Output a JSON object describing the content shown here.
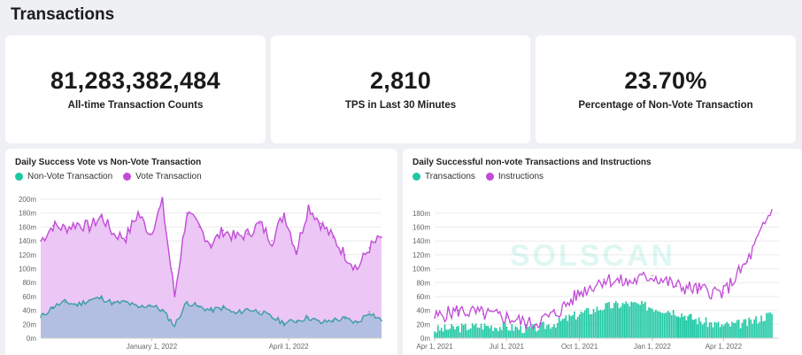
{
  "page": {
    "title": "Transactions"
  },
  "stats": [
    {
      "value": "81,283,382,484",
      "label": "All-time Transaction Counts"
    },
    {
      "value": "2,810",
      "label": "TPS in Last 30 Minutes"
    },
    {
      "value": "23.70%",
      "label": "Percentage of Non-Vote Transaction"
    }
  ],
  "watermark": "SOLSCAN",
  "colors": {
    "teal": "#1fc8a4",
    "purple": "#c14bd8",
    "purple_fill": "#ecc6f5",
    "teal_fill": "#b3bfe2",
    "teal_line": "#3a9da5"
  },
  "chart_data": [
    {
      "type": "area",
      "title": "Daily Success Vote vs Non-Vote Transaction",
      "legend": [
        "Non-Vote Transaction",
        "Vote Transaction"
      ],
      "x_ticks": [
        "January 1, 2022",
        "April 1, 2022"
      ],
      "y_ticks": [
        "0m",
        "20m",
        "40m",
        "60m",
        "80m",
        "100m",
        "120m",
        "140m",
        "160m",
        "180m",
        "200m"
      ],
      "ylim": [
        0,
        200
      ],
      "x_range": [
        "2021-10-20",
        "2022-06-01"
      ],
      "series": [
        {
          "name": "Non-Vote Transaction",
          "x": [
            "2021-10-20",
            "2021-10-28",
            "2021-11-05",
            "2021-11-13",
            "2021-11-21",
            "2021-11-29",
            "2021-12-07",
            "2021-12-15",
            "2021-12-23",
            "2021-12-31",
            "2022-01-08",
            "2022-01-16",
            "2022-01-24",
            "2022-02-01",
            "2022-02-09",
            "2022-02-17",
            "2022-02-25",
            "2022-03-05",
            "2022-03-13",
            "2022-03-21",
            "2022-03-29",
            "2022-04-06",
            "2022-04-14",
            "2022-04-22",
            "2022-04-30",
            "2022-05-08",
            "2022-05-16",
            "2022-05-24",
            "2022-06-01"
          ],
          "values": [
            30,
            45,
            52,
            48,
            55,
            58,
            50,
            52,
            44,
            48,
            40,
            18,
            52,
            45,
            40,
            44,
            35,
            42,
            38,
            30,
            22,
            25,
            30,
            22,
            26,
            28,
            22,
            38,
            25
          ]
        },
        {
          "name": "Vote Transaction",
          "x": [
            "2021-10-20",
            "2021-10-28",
            "2021-11-05",
            "2021-11-13",
            "2021-11-21",
            "2021-11-29",
            "2021-12-07",
            "2021-12-15",
            "2021-12-23",
            "2021-12-31",
            "2022-01-08",
            "2022-01-16",
            "2022-01-24",
            "2022-02-01",
            "2022-02-09",
            "2022-02-17",
            "2022-02-25",
            "2022-03-05",
            "2022-03-13",
            "2022-03-21",
            "2022-03-29",
            "2022-04-06",
            "2022-04-14",
            "2022-04-22",
            "2022-04-30",
            "2022-05-08",
            "2022-05-16",
            "2022-05-24",
            "2022-06-01"
          ],
          "values": [
            140,
            162,
            158,
            165,
            160,
            175,
            150,
            145,
            180,
            150,
            195,
            60,
            180,
            160,
            135,
            155,
            145,
            150,
            165,
            140,
            180,
            125,
            190,
            165,
            145,
            120,
            100,
            130,
            145
          ]
        }
      ]
    },
    {
      "type": "bar",
      "title": "Daily Successful non-vote Transactions and Instructions",
      "legend": [
        "Transactions",
        "Instructions"
      ],
      "x_ticks": [
        "Apr 1, 2021",
        "Jul 1, 2021",
        "Oct 1, 2021",
        "Jan 1, 2022",
        "Apr 1, 2022"
      ],
      "y_ticks": [
        "0m",
        "20m",
        "40m",
        "60m",
        "80m",
        "100m",
        "120m",
        "140m",
        "160m",
        "180m"
      ],
      "ylim": [
        0,
        190
      ],
      "x_range": [
        "2021-04-01",
        "2022-06-10"
      ],
      "series": [
        {
          "name": "Transactions",
          "x": [
            "2021-04-01",
            "2021-05-01",
            "2021-06-01",
            "2021-07-01",
            "2021-08-01",
            "2021-09-01",
            "2021-10-01",
            "2021-11-01",
            "2021-12-01",
            "2022-01-01",
            "2022-02-01",
            "2022-03-01",
            "2022-04-01",
            "2022-05-01",
            "2022-06-01"
          ],
          "values": [
            12,
            15,
            18,
            16,
            13,
            22,
            35,
            45,
            50,
            45,
            38,
            25,
            18,
            22,
            35
          ]
        },
        {
          "name": "Instructions",
          "x": [
            "2021-04-01",
            "2021-05-01",
            "2021-06-01",
            "2021-07-01",
            "2021-08-01",
            "2021-09-01",
            "2021-10-01",
            "2021-11-01",
            "2021-12-01",
            "2022-01-01",
            "2022-02-01",
            "2022-03-01",
            "2022-04-01",
            "2022-05-01",
            "2022-06-01"
          ],
          "values": [
            30,
            40,
            35,
            30,
            20,
            35,
            65,
            85,
            80,
            90,
            75,
            70,
            65,
            110,
            185
          ]
        }
      ]
    }
  ]
}
